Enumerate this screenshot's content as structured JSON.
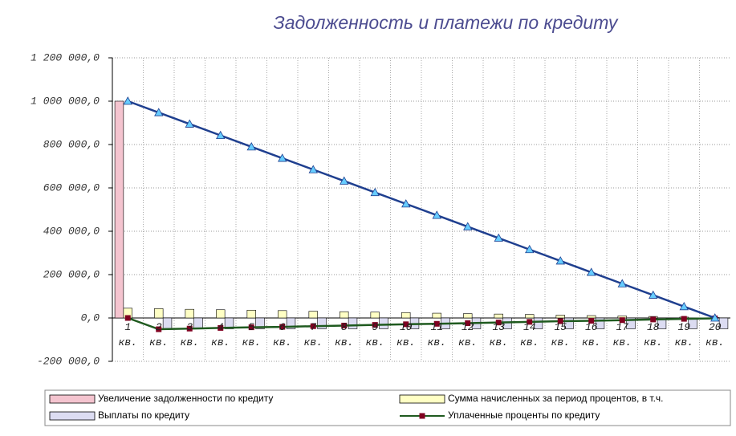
{
  "chart_data": {
    "type": "bar",
    "title": "Задолженность и платежи по кредиту",
    "categories": [
      "1 кв.",
      "2 кв.",
      "3 кв.",
      "4 кв.",
      "5 кв.",
      "6 кв.",
      "7 кв.",
      "8 кв.",
      "9 кв.",
      "10 кв.",
      "11 кв.",
      "12 кв.",
      "13 кв.",
      "14 кв.",
      "15 кв.",
      "16 кв.",
      "17 кв.",
      "18 кв.",
      "19 кв.",
      "20 кв."
    ],
    "ylim": [
      -200000,
      1200000
    ],
    "yticks": [
      {
        "value": -200000,
        "label": "-200 000,0"
      },
      {
        "value": 0,
        "label": "0,0"
      },
      {
        "value": 200000,
        "label": "200 000,0"
      },
      {
        "value": 400000,
        "label": "400 000,0"
      },
      {
        "value": 600000,
        "label": "600 000,0"
      },
      {
        "value": 800000,
        "label": "800 000,0"
      },
      {
        "value": 1000000,
        "label": "1 000 000,0"
      },
      {
        "value": 1200000,
        "label": "1 200 000,0"
      }
    ],
    "grid": true,
    "series": [
      {
        "name": "Увеличение задолженности по кредиту",
        "type": "bar",
        "color": "#f4c4cf",
        "values": [
          1000000,
          0,
          0,
          0,
          0,
          0,
          0,
          0,
          0,
          0,
          0,
          0,
          0,
          0,
          0,
          0,
          0,
          0,
          0,
          0
        ]
      },
      {
        "name": "Сумма начисленных за период процентов, в т.ч.",
        "type": "bar",
        "color": "#ffffc4",
        "values": [
          45000,
          43000,
          40000,
          38000,
          36000,
          34000,
          31000,
          29000,
          27000,
          25000,
          22000,
          20000,
          18000,
          16000,
          13000,
          11000,
          9000,
          7000,
          4000,
          2000
        ]
      },
      {
        "name": "Выплаты по кредиту",
        "type": "bar",
        "color": "#dcdcf2",
        "values": [
          0,
          -50000,
          -50000,
          -50000,
          -50000,
          -50000,
          -50000,
          -50000,
          -50000,
          -50000,
          -50000,
          -50000,
          -50000,
          -50000,
          -50000,
          -50000,
          -50000,
          -50000,
          -50000,
          -50000
        ]
      },
      {
        "name": "Уплаченные проценты по кредиту",
        "type": "line",
        "color": "#1f5a1f",
        "marker": "#800020",
        "values": [
          0,
          -52000,
          -49000,
          -46000,
          -43000,
          -41000,
          -38000,
          -35000,
          -32000,
          -29000,
          -27000,
          -24000,
          -21000,
          -18000,
          -15000,
          -13000,
          -10000,
          -7000,
          -4000,
          -2000
        ]
      },
      {
        "type": "line",
        "color": "#1f3f8f",
        "marker": "#66ccff",
        "values": [
          1000000,
          947368,
          894737,
          842105,
          789474,
          736842,
          684211,
          631579,
          578947,
          526316,
          473684,
          421053,
          368421,
          315789,
          263158,
          210526,
          157895,
          105263,
          52632,
          0
        ]
      }
    ]
  }
}
